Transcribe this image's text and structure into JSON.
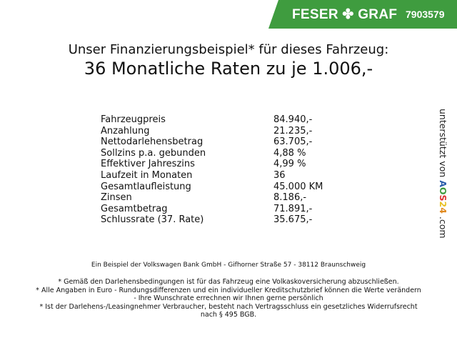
{
  "header": {
    "brand": "FESER ✤ GRAF",
    "dealer_id": "7903579",
    "brand_color": "#3f9c3f"
  },
  "title": {
    "line1": "Unser Finanzierungsbeispiel* für dieses Fahrzeug:",
    "line2": "36 Monatliche Raten zu je 1.006,-"
  },
  "rows": [
    {
      "label": "Fahrzeugpreis",
      "value": "84.940,-"
    },
    {
      "label": "Anzahlung",
      "value": "21.235,-"
    },
    {
      "label": "Nettodarlehensbetrag",
      "value": "63.705,-"
    },
    {
      "label": "Sollzins p.a. gebunden",
      "value": "4,88 %"
    },
    {
      "label": "Effektiver Jahreszins",
      "value": "4,99 %"
    },
    {
      "label": "Laufzeit in Monaten",
      "value": "36"
    },
    {
      "label": "Gesamtlaufleistung",
      "value": "45.000 KM"
    },
    {
      "label": "Zinsen",
      "value": "8.186,-"
    },
    {
      "label": "Gesamtbetrag",
      "value": "71.891,-"
    },
    {
      "label": "Schlussrate (37. Rate)",
      "value": "35.675,-"
    }
  ],
  "bank": "Ein Beispiel der Volkswagen Bank GmbH - Gifhorner Straße 57 - 38112 Braunschweig",
  "notes": [
    "* Gemäß den Darlehensbedingungen ist für das Fahrzeug eine Volkaskoversicherung abzuschließen.",
    "* Alle Angaben in Euro - Rundungsdifferenzen und ein individueller Kreditschutzbrief können die Werte verändern",
    "- Ihre Wunschrate errechnen wir Ihnen gerne persönlich",
    "* Ist der Darlehens-/Leasingnehmer Verbraucher, besteht nach Vertragsschluss ein gesetzliches Widerrufsrecht",
    "nach § 495 BGB."
  ],
  "side": {
    "prefix": "unterstützt von ",
    "logo": [
      "A",
      "O",
      "S",
      "2",
      "4"
    ],
    "suffix": " .com",
    "logo_colors": [
      "#2a5caa",
      "#3c9a3c",
      "#d33",
      "#e8c020",
      "#e08a20"
    ]
  }
}
